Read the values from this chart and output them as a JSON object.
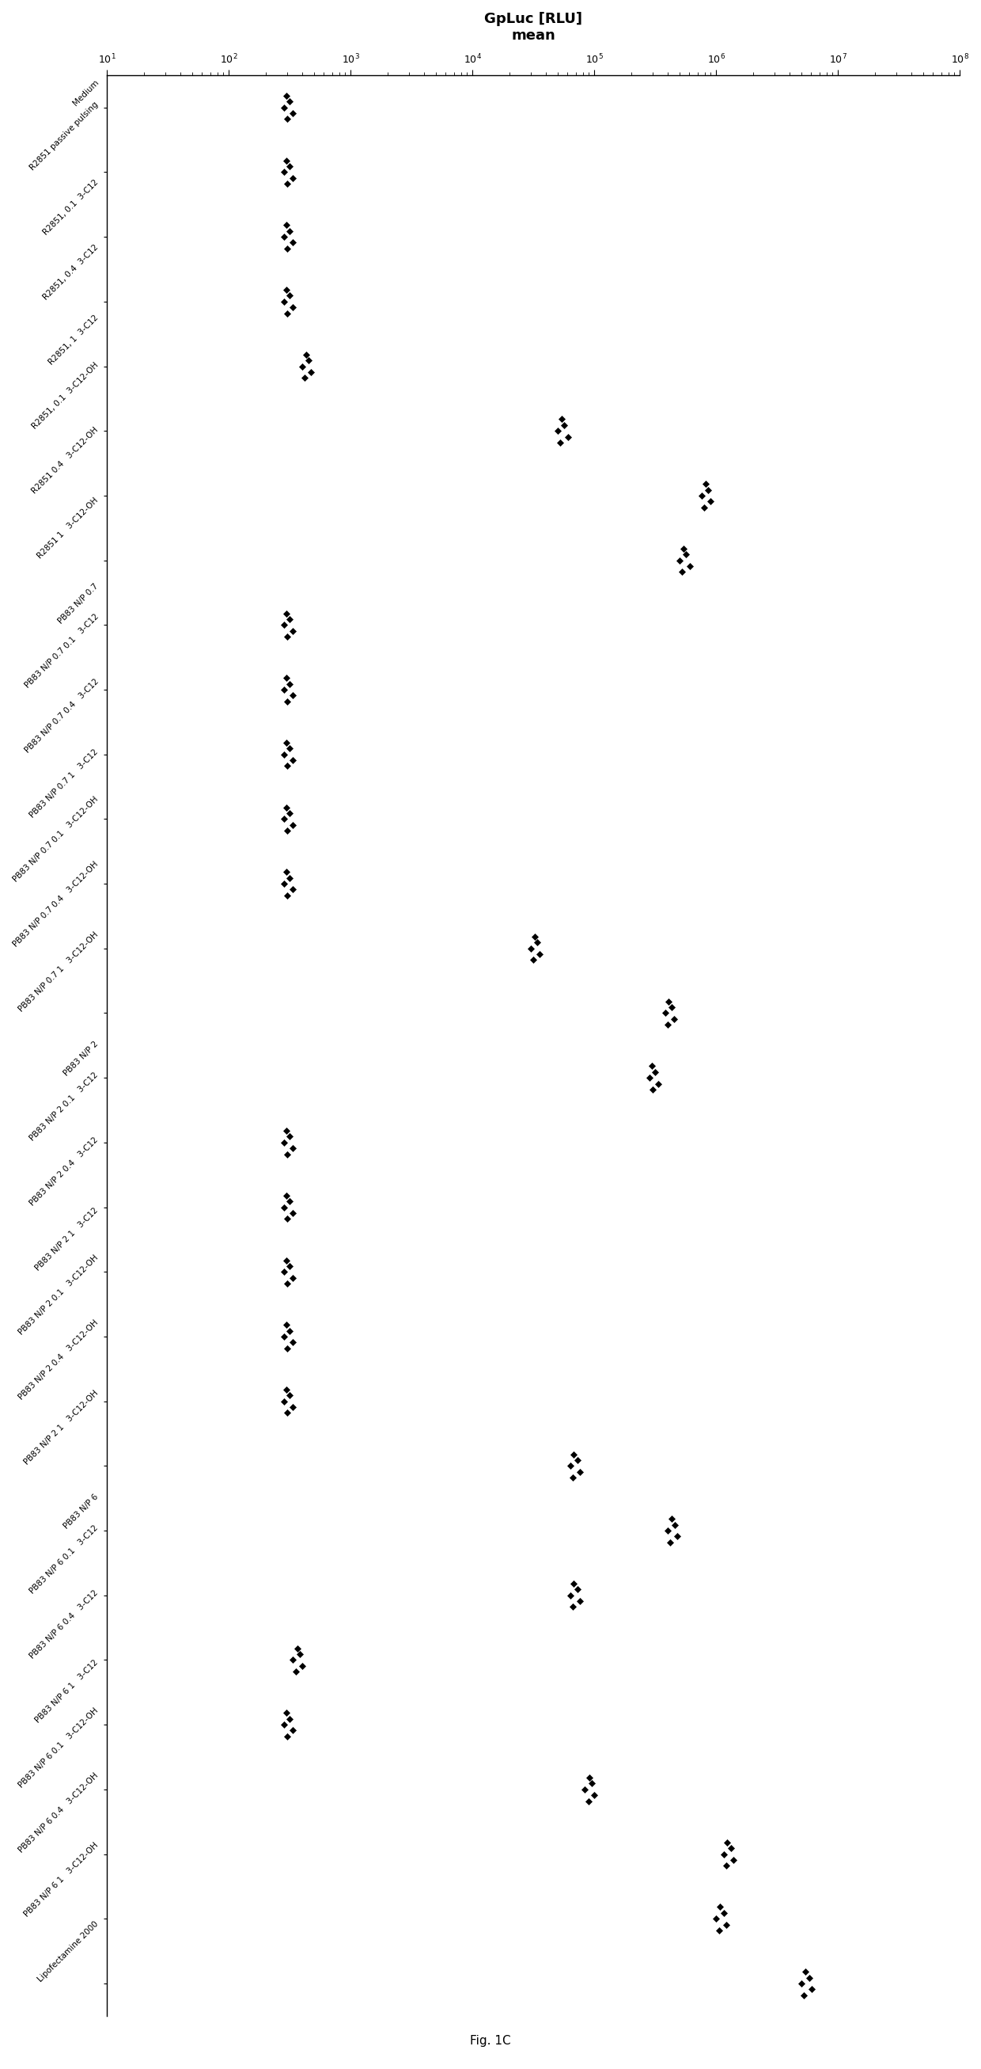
{
  "title": "GpLuc [RLU]\nmean",
  "fig_caption": "Fig. 1C",
  "xlim_log": [
    1,
    8
  ],
  "xtick_powers": [
    1,
    2,
    3,
    4,
    5,
    6,
    7,
    8
  ],
  "categories": [
    "Medium",
    "R2851 passive pulsing",
    "R2851, 0.1  3-C12",
    "R2851, 0.4  3-C12",
    "R2851, 1  3-C12",
    "R2851, 0.1  3-C12-OH",
    "R2851 0.4   3-C12-OH",
    "R2851 1   3-C12-OH",
    "PB83 N/P 0.7",
    "PB83 N/P 0.7 0.1   3-C12",
    "PB83 N/P 0.7 0.4   3-C12",
    "PB83 N/P 0.7 1   3-C12",
    "PB83 N/P 0.7 0.1   3-C12-OH",
    "PB83 N/P 0.7 0.4   3-C12-OH",
    "PB83 N/P 0.7 1   3-C12-OH",
    "PB83 N/P 2",
    "PB83 N/P 2 0.1   3-C12",
    "PB83 N/P 2 0.4   3-C12",
    "PB83 N/P 2 1   3-C12",
    "PB83 N/P 2 0.1   3-C12-OH",
    "PB83 N/P 2 0.4   3-C12-OH",
    "PB83 N/P 2 1   3-C12-OH",
    "PB83 N/P 6",
    "PB83 N/P 6 0.1   3-C12",
    "PB83 N/P 6 0.4   3-C12",
    "PB83 N/P 6 1   3-C12",
    "PB83 N/P 6 0.1   3-C12-OH",
    "PB83 N/P 6 0.4   3-C12-OH",
    "PB83 N/P 6 1   3-C12-OH",
    "Lipofectamine 2000"
  ],
  "data_log10": {
    "Medium": [
      2.48,
      2.52,
      2.45,
      2.5,
      2.47
    ],
    "R2851 passive pulsing": [
      2.48,
      2.52,
      2.45,
      2.5,
      2.47
    ],
    "R2851, 0.1  3-C12": [
      2.48,
      2.52,
      2.45,
      2.5,
      2.47
    ],
    "R2851, 0.4  3-C12": [
      2.48,
      2.52,
      2.45,
      2.5,
      2.47
    ],
    "R2851, 1  3-C12": [
      2.62,
      2.67,
      2.6,
      2.65,
      2.63
    ],
    "R2851, 0.1  3-C12-OH": [
      4.72,
      4.78,
      4.7,
      4.75,
      4.73
    ],
    "R2851 0.4   3-C12-OH": [
      5.9,
      5.95,
      5.88,
      5.93,
      5.91
    ],
    "R2851 1   3-C12-OH": [
      5.72,
      5.78,
      5.7,
      5.75,
      5.73
    ],
    "PB83 N/P 0.7": [
      2.48,
      2.52,
      2.45,
      2.5,
      2.47
    ],
    "PB83 N/P 0.7 0.1   3-C12": [
      2.48,
      2.52,
      2.45,
      2.5,
      2.47
    ],
    "PB83 N/P 0.7 0.4   3-C12": [
      2.48,
      2.52,
      2.45,
      2.5,
      2.47
    ],
    "PB83 N/P 0.7 1   3-C12": [
      2.48,
      2.52,
      2.45,
      2.5,
      2.47
    ],
    "PB83 N/P 0.7 0.1   3-C12-OH": [
      2.48,
      2.52,
      2.45,
      2.5,
      2.47
    ],
    "PB83 N/P 0.7 0.4   3-C12-OH": [
      4.5,
      4.55,
      4.48,
      4.53,
      4.51
    ],
    "PB83 N/P 0.7 1   3-C12-OH": [
      5.6,
      5.65,
      5.58,
      5.63,
      5.61
    ],
    "PB83 N/P 2": [
      5.48,
      5.52,
      5.45,
      5.5,
      5.47
    ],
    "PB83 N/P 2 0.1   3-C12": [
      2.48,
      2.52,
      2.45,
      2.5,
      2.47
    ],
    "PB83 N/P 2 0.4   3-C12": [
      2.48,
      2.52,
      2.45,
      2.5,
      2.47
    ],
    "PB83 N/P 2 1   3-C12": [
      2.48,
      2.52,
      2.45,
      2.5,
      2.47
    ],
    "PB83 N/P 2 0.1   3-C12-OH": [
      2.48,
      2.52,
      2.45,
      2.5,
      2.47
    ],
    "PB83 N/P 2 0.4   3-C12-OH": [
      2.48,
      2.52,
      2.45,
      2.5,
      2.47
    ],
    "PB83 N/P 2 1   3-C12-OH": [
      4.82,
      4.88,
      4.8,
      4.86,
      4.83
    ],
    "PB83 N/P 6": [
      5.62,
      5.68,
      5.6,
      5.66,
      5.63
    ],
    "PB83 N/P 6 0.1   3-C12": [
      4.82,
      4.88,
      4.8,
      4.86,
      4.83
    ],
    "PB83 N/P 6 0.4   3-C12": [
      2.55,
      2.6,
      2.52,
      2.58,
      2.56
    ],
    "PB83 N/P 6 1   3-C12": [
      2.48,
      2.52,
      2.45,
      2.5,
      2.47
    ],
    "PB83 N/P 6 0.1   3-C12-OH": [
      4.95,
      5.0,
      4.92,
      4.98,
      4.96
    ],
    "PB83 N/P 6 0.4   3-C12-OH": [
      6.08,
      6.14,
      6.06,
      6.12,
      6.09
    ],
    "PB83 N/P 6 1   3-C12-OH": [
      6.02,
      6.08,
      6.0,
      6.06,
      6.03
    ],
    "Lipofectamine 2000": [
      6.72,
      6.78,
      6.7,
      6.76,
      6.73
    ]
  },
  "marker": "D",
  "marker_size": 4,
  "marker_color": "black",
  "label_fontsize": 7.5,
  "title_fontsize": 13
}
